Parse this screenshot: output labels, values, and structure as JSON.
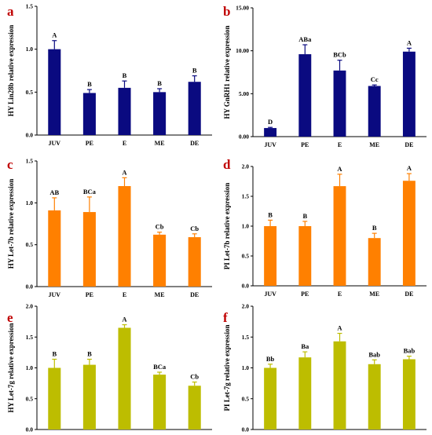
{
  "figure": {
    "panels": [
      {
        "letter": "a",
        "bar_color": "#0A0A80"
      },
      {
        "letter": "b",
        "bar_color": "#0A0A80"
      },
      {
        "letter": "c",
        "bar_color": "#FF8000"
      },
      {
        "letter": "d",
        "bar_color": "#FF8000"
      },
      {
        "letter": "e",
        "bar_color": "#BDBD00"
      },
      {
        "letter": "f",
        "bar_color": "#BDBD00"
      }
    ],
    "letter_color": "#C00000"
  },
  "chart_data": [
    {
      "type": "bar",
      "ylabel": "HY Lin28b relative expression",
      "categories": [
        "JUV",
        "PE",
        "E",
        "ME",
        "DE"
      ],
      "values": [
        1.0,
        0.49,
        0.55,
        0.5,
        0.62
      ],
      "errors": [
        0.1,
        0.04,
        0.08,
        0.04,
        0.07
      ],
      "labels": [
        "A",
        "B",
        "B",
        "B",
        "B"
      ],
      "ylim": [
        0,
        1.5
      ],
      "yticks": [
        "0.0",
        "0.5",
        "1.0",
        "1.5"
      ]
    },
    {
      "type": "bar",
      "ylabel": "HY GnRH1 relative expression",
      "categories": [
        "JUV",
        "PE",
        "E",
        "ME",
        "DE"
      ],
      "values": [
        1.0,
        9.6,
        7.7,
        5.9,
        9.9
      ],
      "errors": [
        0.08,
        1.1,
        1.2,
        0.12,
        0.4
      ],
      "labels": [
        "D",
        "ABa",
        "BCb",
        "Cc",
        "A"
      ],
      "ylim": [
        0,
        15
      ],
      "yticks": [
        "0.00",
        "5.00",
        "10.00",
        "15.00"
      ]
    },
    {
      "type": "bar",
      "ylabel": "HY Let-7b relative expression",
      "categories": [
        "JUV",
        "PE",
        "E",
        "ME",
        "DE"
      ],
      "values": [
        0.91,
        0.89,
        1.2,
        0.62,
        0.59
      ],
      "errors": [
        0.15,
        0.18,
        0.1,
        0.03,
        0.04
      ],
      "labels": [
        "AB",
        "BCa",
        "A",
        "Cb",
        "Cb"
      ],
      "ylim": [
        0,
        1.5
      ],
      "yticks": [
        "0.0",
        "0.5",
        "1.0",
        "1.5"
      ]
    },
    {
      "type": "bar",
      "ylabel": "PI Let-7b relative expression",
      "categories": [
        "JUV",
        "PE",
        "E",
        "ME",
        "DE"
      ],
      "values": [
        1.0,
        1.0,
        1.67,
        0.8,
        1.76
      ],
      "errors": [
        0.1,
        0.08,
        0.2,
        0.08,
        0.12
      ],
      "labels": [
        "B",
        "B",
        "A",
        "B",
        "A"
      ],
      "ylim": [
        0,
        2.0
      ],
      "yticks": [
        "0.0",
        "0.5",
        "1.0",
        "1.5",
        "2.0"
      ]
    },
    {
      "type": "bar",
      "ylabel": "HY Let-7g relative expression",
      "categories": [
        "JUV",
        "PE",
        "E",
        "ME",
        "DE"
      ],
      "values": [
        1.0,
        1.05,
        1.65,
        0.89,
        0.71
      ],
      "errors": [
        0.14,
        0.09,
        0.05,
        0.04,
        0.06
      ],
      "labels": [
        "B",
        "B",
        "A",
        "BCa",
        "Cb"
      ],
      "ylim": [
        0,
        2.0
      ],
      "yticks": [
        "0.0",
        "0.5",
        "1.0",
        "1.5",
        "2.0"
      ]
    },
    {
      "type": "bar",
      "ylabel": "PI Let-7g relative expression",
      "categories": [
        "JUV",
        "PE",
        "E",
        "ME",
        "DE"
      ],
      "values": [
        1.0,
        1.17,
        1.43,
        1.06,
        1.14
      ],
      "errors": [
        0.06,
        0.09,
        0.13,
        0.07,
        0.05
      ],
      "labels": [
        "Bb",
        "Ba",
        "A",
        "Bab",
        "Bab"
      ],
      "ylim": [
        0,
        2.0
      ],
      "yticks": [
        "0.0",
        "0.5",
        "1.0",
        "1.5",
        "2.0"
      ]
    }
  ]
}
